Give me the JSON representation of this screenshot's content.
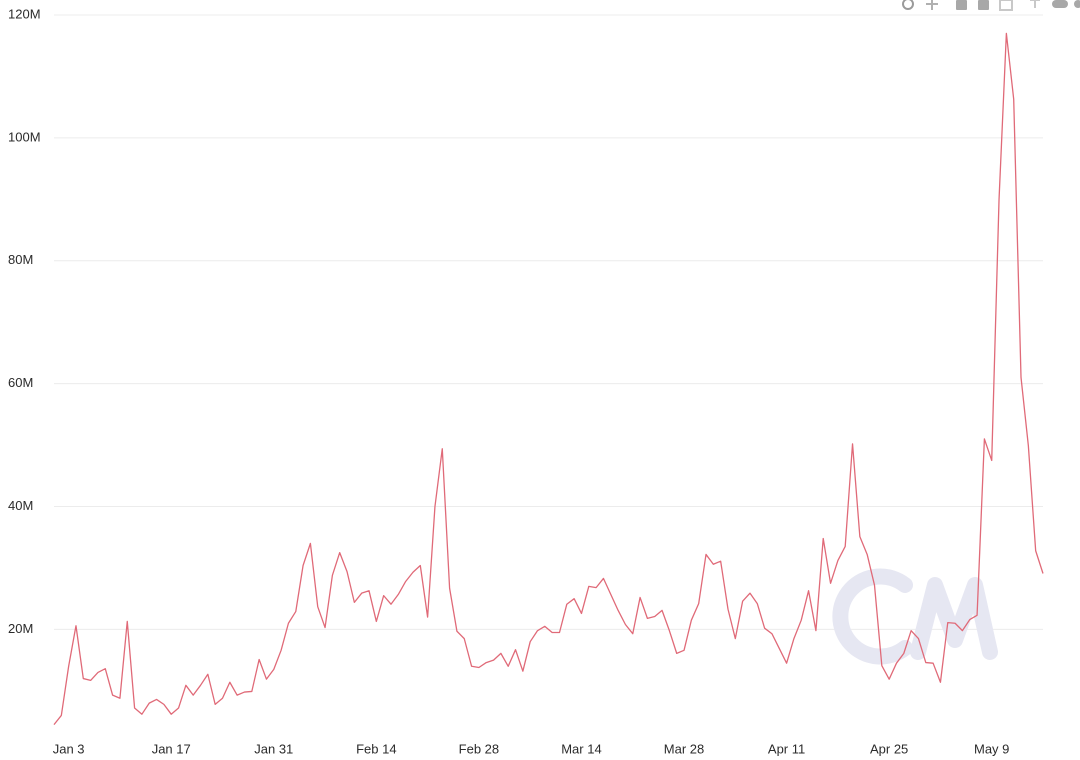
{
  "chart_data": {
    "type": "line",
    "color": "#e06a78",
    "grid": true,
    "categories": [
      null,
      null,
      "Jan 3",
      null,
      null,
      null,
      null,
      null,
      null,
      null,
      null,
      null,
      null,
      null,
      null,
      null,
      "Jan 17",
      null,
      null,
      null,
      null,
      null,
      null,
      null,
      null,
      null,
      null,
      null,
      null,
      null,
      "Jan 31",
      null,
      null,
      null,
      null,
      null,
      null,
      null,
      null,
      null,
      null,
      null,
      null,
      null,
      "Feb 14",
      null,
      null,
      null,
      null,
      null,
      null,
      null,
      null,
      null,
      null,
      null,
      null,
      null,
      "Feb 28",
      null,
      null,
      null,
      null,
      null,
      null,
      null,
      null,
      null,
      null,
      null,
      null,
      null,
      "Mar 14",
      null,
      null,
      null,
      null,
      null,
      null,
      null,
      null,
      null,
      null,
      null,
      null,
      null,
      "Mar 28",
      null,
      null,
      null,
      null,
      null,
      null,
      null,
      null,
      null,
      null,
      null,
      null,
      null,
      "Apr 11",
      null,
      null,
      null,
      null,
      null,
      null,
      null,
      null,
      null,
      null,
      null,
      null,
      null,
      "Apr 25",
      null,
      null,
      null,
      null,
      null,
      null,
      null,
      null,
      null,
      null,
      null,
      null,
      null,
      "May 9",
      null,
      null,
      null,
      null,
      null,
      null,
      null
    ],
    "values": [
      4500000,
      6000000,
      14000000,
      20600000,
      12000000,
      11700000,
      13000000,
      13600000,
      9300000,
      8800000,
      21300000,
      7200000,
      6200000,
      8000000,
      8600000,
      7800000,
      6200000,
      7200000,
      10900000,
      9300000,
      10900000,
      12700000,
      7800000,
      8800000,
      11400000,
      9300000,
      9800000,
      9900000,
      15100000,
      11900000,
      13500000,
      16600000,
      21000000,
      22900000,
      30400000,
      34000000,
      23700000,
      20300000,
      28800000,
      32500000,
      29400000,
      24400000,
      25900000,
      26300000,
      21300000,
      25500000,
      24100000,
      25700000,
      27800000,
      29300000,
      30400000,
      22000000,
      40000000,
      49400000,
      26700000,
      19700000,
      18500000,
      14000000,
      13800000,
      14600000,
      15000000,
      16100000,
      14000000,
      16700000,
      13200000,
      18000000,
      19800000,
      20500000,
      19500000,
      19500000,
      24100000,
      25000000,
      22600000,
      27000000,
      26800000,
      28300000,
      25700000,
      23100000,
      20800000,
      19300000,
      25200000,
      21800000,
      22100000,
      23100000,
      19800000,
      16100000,
      16600000,
      21500000,
      24200000,
      32200000,
      30600000,
      31100000,
      23300000,
      18500000,
      24600000,
      25900000,
      24200000,
      20200000,
      19300000,
      16900000,
      14500000,
      18500000,
      21500000,
      26300000,
      19800000,
      34800000,
      27500000,
      31200000,
      33500000,
      50200000,
      35100000,
      32200000,
      27200000,
      14100000,
      11900000,
      14500000,
      16100000,
      19800000,
      18500000,
      14600000,
      14500000,
      11400000,
      21100000,
      21000000,
      19800000,
      21600000,
      22300000,
      51000000,
      47500000,
      90000000,
      117000000,
      106300000,
      61000000,
      49900000,
      32800000,
      29100000
    ],
    "ylim": [
      2000000,
      120000000
    ],
    "yticks": [
      {
        "value": 20000000,
        "label": "20M"
      },
      {
        "value": 40000000,
        "label": "40M"
      },
      {
        "value": 60000000,
        "label": "60M"
      },
      {
        "value": 80000000,
        "label": "80M"
      },
      {
        "value": 100000000,
        "label": "100M"
      },
      {
        "value": 120000000,
        "label": "120M"
      }
    ]
  }
}
